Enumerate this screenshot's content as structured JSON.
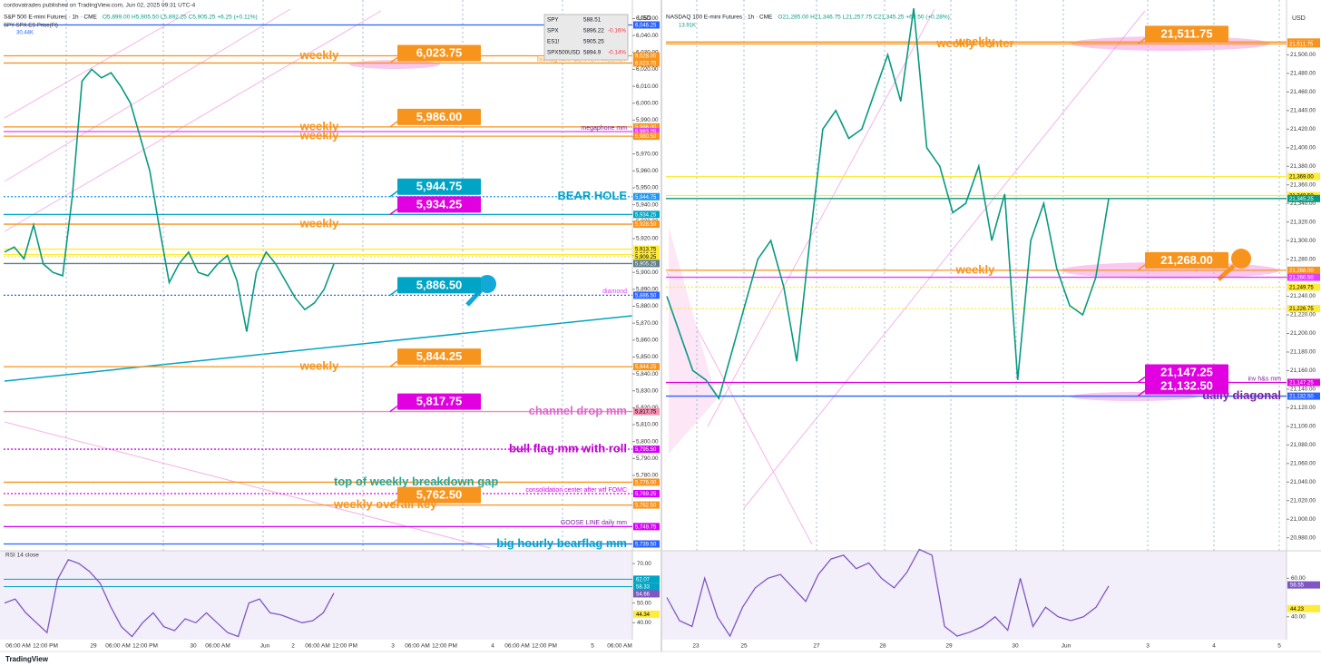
{
  "footer": "TradingView",
  "left": {
    "currency": "USD",
    "header": {
      "by": "cordovatrades published on TradingView.com, Jun 02, 2025 09:31 UTC-4",
      "symbol": "S&P 500 E-mini Futures · 1h · CME",
      "ohlc": "O5,899.00 H5,905.50 L5,892.25 C5,905.25 +6.25 (+0.11%)",
      "studies": "SPY SPX ES Price(Ft)",
      "volume": "30.44K"
    },
    "watchlist": [
      {
        "symbol": "SPY",
        "price": "588.51"
      },
      {
        "symbol": "SPX",
        "price": "5896.22",
        "change": "-0.16%"
      },
      {
        "symbol": "ES1!",
        "price": "5905.25"
      },
      {
        "symbol": "SPX500USD",
        "price": "5894.9",
        "change": "-0.14%"
      }
    ],
    "ylim": [
      5736,
      6061
    ],
    "yticks": [
      {
        "value": 6050,
        "label": "6,050.00"
      },
      {
        "value": 6040,
        "label": "6,040.00"
      },
      {
        "value": 6030,
        "label": "6,030.00"
      },
      {
        "value": 6020,
        "label": "6,020.00"
      },
      {
        "value": 6010,
        "label": "6,010.00"
      },
      {
        "value": 6000,
        "label": "6,000.00"
      },
      {
        "value": 5990,
        "label": "5,990.00"
      },
      {
        "value": 5980,
        "label": "5,980.00"
      },
      {
        "value": 5970,
        "label": "5,970.00"
      },
      {
        "value": 5960,
        "label": "5,960.00"
      },
      {
        "value": 5950,
        "label": "5,950.00"
      },
      {
        "value": 5940,
        "label": "5,940.00"
      },
      {
        "value": 5930,
        "label": "5,930.00"
      },
      {
        "value": 5920,
        "label": "5,920.00"
      },
      {
        "value": 5910,
        "label": "5,910.00"
      },
      {
        "value": 5900,
        "label": "5,900.00"
      },
      {
        "value": 5890,
        "label": "5,890.00"
      },
      {
        "value": 5880,
        "label": "5,880.00"
      },
      {
        "value": 5870,
        "label": "5,870.00"
      },
      {
        "value": 5860,
        "label": "5,860.00"
      },
      {
        "value": 5850,
        "label": "5,850.00"
      },
      {
        "value": 5840,
        "label": "5,840.00"
      },
      {
        "value": 5830,
        "label": "5,830.00"
      },
      {
        "value": 5820,
        "label": "5,820.00"
      },
      {
        "value": 5810,
        "label": "5,810.00"
      },
      {
        "value": 5800,
        "label": "5,800.00"
      },
      {
        "value": 5790,
        "label": "5,790.00"
      },
      {
        "value": 5780,
        "label": "5,780.00"
      }
    ],
    "levels": [
      {
        "value": 6046.25,
        "label": "6,046.25",
        "color": "#2962ff",
        "dash": false
      },
      {
        "value": 6028.0,
        "label": "6,028.00",
        "color": "#f7941d",
        "dash": false,
        "note": "weekly",
        "note_color": "#f7941d"
      },
      {
        "value": 6023.75,
        "label": "6,023.75",
        "color": "#f7941d",
        "dash": false,
        "note": "bullflag mm/ CENTER WEEKLY",
        "note_color": "#f7941d"
      },
      {
        "value": 5986.0,
        "label": "5,986.00",
        "color": "#f7941d",
        "dash": false,
        "note": "weekly",
        "note_color": "#f7941d"
      },
      {
        "value": 5983.25,
        "label": "5,983.25",
        "color": "#e040fb",
        "dash": false,
        "note": "megaphone mm",
        "note_color": "#7b1fa2"
      },
      {
        "value": 5980.5,
        "label": "5,980.50",
        "color": "#f7941d",
        "dash": false,
        "note": "weekly",
        "note_color": "#f7941d"
      },
      {
        "value": 5944.75,
        "label": "5,944.75",
        "color": "#2196f3",
        "dash": true,
        "note": "BEAR HOLE",
        "note_color": "#00a4c4"
      },
      {
        "value": 5934.25,
        "label": "5,934.25",
        "color": "#00a4c4",
        "dash": false
      },
      {
        "value": 5928.5,
        "label": "5,928.50",
        "color": "#f7941d",
        "dash": false,
        "note": "weekly",
        "note_color": "#f7941d"
      },
      {
        "value": 5913.75,
        "label": "5,913.75",
        "color": "#ffeb3b",
        "dash": false
      },
      {
        "value": 5910.5,
        "label": "5,910.50",
        "color": "#ffeb3b",
        "dash": false
      },
      {
        "value": 5909.25,
        "label": "5,909.25",
        "color": "#ffeb3b",
        "dash": true
      },
      {
        "value": 5905.25,
        "label": "5,905.25",
        "color": "#607d8b",
        "dash": false
      },
      {
        "value": 5886.5,
        "label": "5,886.50",
        "color": "#2962ff",
        "dash": true,
        "note": "diamond",
        "note_color": "#e040fb"
      },
      {
        "value": 5844.25,
        "label": "5,844.25",
        "color": "#f7941d",
        "dash": false,
        "note": "weekly",
        "note_color": "#f7941d"
      },
      {
        "value": 5817.75,
        "label": "5,817.75",
        "color": "#f48fb1",
        "dash": false,
        "note": "channel drop mm",
        "note_color": "#e066d0"
      },
      {
        "value": 5795.5,
        "label": "5,795.50",
        "color": "#d500f9",
        "dash": true,
        "note": "bull flag mm with roll",
        "note_color": "#c000d0"
      },
      {
        "value": 5776.0,
        "label": "5,776.00",
        "color": "#f7941d",
        "dash": false,
        "note": "top of weekly breakdown gap",
        "note_color": "#26a69a"
      },
      {
        "value": 5769.25,
        "label": "5,769.25",
        "color": "#d500f9",
        "dash": true,
        "note": "consolidation center after wtf FOMC",
        "note_color": "#d500f9"
      },
      {
        "value": 5762.5,
        "label": "5,762.50",
        "color": "#f7941d",
        "dash": false,
        "note": "weekly overall key",
        "note_color": "#f7941d"
      },
      {
        "value": 5749.75,
        "label": "5,749.75",
        "color": "#d500f9",
        "dash": false,
        "note": "GOOSE LINE daily mm",
        "note_color": "#7b1fa2"
      },
      {
        "value": 5739.5,
        "label": "5,739.50",
        "color": "#2962ff",
        "dash": false,
        "note": "big hourly bearflag mm",
        "note_color": "#00a4c4"
      }
    ],
    "callouts": [
      {
        "value": 6023.75,
        "label": "6,023.75",
        "color": "#f7941d"
      },
      {
        "value": 5986.0,
        "label": "5,986.00",
        "color": "#f7941d"
      },
      {
        "value": 5944.75,
        "label": "5,944.75",
        "color": "#00a4c4"
      },
      {
        "value": 5934.25,
        "label": "5,934.25",
        "color": "#e000e0"
      },
      {
        "value": 5886.5,
        "label": "5,886.50",
        "color": "#00a4c4"
      },
      {
        "value": 5844.25,
        "label": "5,844.25",
        "color": "#f7941d"
      },
      {
        "value": 5817.75,
        "label": "5,817.75",
        "color": "#e000e0"
      },
      {
        "value": 5762.5,
        "label": "5,762.50",
        "color": "#f7941d"
      }
    ],
    "close": [
      5912,
      5915,
      5908,
      5928,
      5905,
      5900,
      5898,
      5945,
      6013,
      6020,
      6015,
      6018,
      6010,
      6000,
      5980,
      5960,
      5926,
      5894,
      5905,
      5912,
      5900,
      5898,
      5905,
      5910,
      5895,
      5865,
      5900,
      5912,
      5905,
      5895,
      5885,
      5878,
      5882,
      5890,
      5905
    ],
    "times": [
      "06:00 AM",
      "12:00 PM",
      "29",
      "06:00 AM",
      "12:00 PM",
      "30",
      "06:00 AM",
      "Jun",
      "2",
      "06:00 AM",
      "12:00 PM",
      "3",
      "06:00 AM",
      "12:00 PM",
      "4",
      "06:00 AM",
      "12:00 PM",
      "5",
      "06:00 AM"
    ],
    "rsi": {
      "label": "RSI 14 close",
      "ylim": [
        31.4,
        76.5
      ],
      "yticks": [
        {
          "value": 70,
          "label": "70.00"
        },
        {
          "value": 50,
          "label": "50.00"
        },
        {
          "value": 40,
          "label": "40.00"
        }
      ],
      "tags": [
        {
          "value": 62.07,
          "label": "62.07",
          "color": "#00a4c4"
        },
        {
          "value": 58.33,
          "label": "58.33",
          "color": "#00a4c4"
        },
        {
          "value": 54.66,
          "label": "54.66",
          "color": "#7e57c2"
        },
        {
          "value": 44.34,
          "label": "44.34",
          "color": "#ffeb3b"
        }
      ],
      "values": [
        50,
        52,
        45,
        40,
        35,
        62,
        72,
        70,
        66,
        60,
        48,
        38,
        33,
        40,
        45,
        38,
        36,
        42,
        40,
        45,
        40,
        35,
        33,
        50,
        52,
        45,
        44,
        42,
        40,
        41,
        45,
        55
      ]
    }
  },
  "right": {
    "currency": "USD",
    "header": {
      "symbol": "NASDAQ 100 E-mini Futures · 1h · CME",
      "ohlc": "O21,285.00 H21,346.75 L21,257.75 C21,345.25 +60.50 (+0.28%)",
      "volume": "13.91K"
    },
    "ylim": [
      20967,
      21559
    ],
    "yticks": [
      {
        "value": 21500,
        "label": "21,500.00"
      },
      {
        "value": 21480,
        "label": "21,480.00"
      },
      {
        "value": 21460,
        "label": "21,460.00"
      },
      {
        "value": 21440,
        "label": "21,440.00"
      },
      {
        "value": 21420,
        "label": "21,420.00"
      },
      {
        "value": 21400,
        "label": "21,400.00"
      },
      {
        "value": 21380,
        "label": "21,380.00"
      },
      {
        "value": 21360,
        "label": "21,360.00"
      },
      {
        "value": 21340,
        "label": "21,340.00"
      },
      {
        "value": 21320,
        "label": "21,320.00"
      },
      {
        "value": 21300,
        "label": "21,300.00"
      },
      {
        "value": 21280,
        "label": "21,280.00"
      },
      {
        "value": 21260,
        "label": "21,260.00"
      },
      {
        "value": 21240,
        "label": "21,240.00"
      },
      {
        "value": 21220,
        "label": "21,220.00"
      },
      {
        "value": 21200,
        "label": "21,200.00"
      },
      {
        "value": 21180,
        "label": "21,180.00"
      },
      {
        "value": 21160,
        "label": "21,160.00"
      },
      {
        "value": 21140,
        "label": "21,140.00"
      },
      {
        "value": 21120,
        "label": "21,120.00"
      },
      {
        "value": 21100,
        "label": "21,100.00"
      },
      {
        "value": 21080,
        "label": "21,080.00"
      },
      {
        "value": 21060,
        "label": "21,060.00"
      },
      {
        "value": 21040,
        "label": "21,040.00"
      },
      {
        "value": 21020,
        "label": "21,020.00"
      },
      {
        "value": 21000,
        "label": "21,000.00"
      },
      {
        "value": 20980,
        "label": "20,980.00"
      }
    ],
    "levels": [
      {
        "value": 21513.75,
        "label": "21,513.75",
        "color": "#f7941d",
        "dash": false,
        "note": "weekly",
        "note_color": "#f7941d"
      },
      {
        "value": 21511.75,
        "label": "21,511.75",
        "color": "#f7941d",
        "dash": false,
        "note": "weekly center",
        "note_color": "#f7941d"
      },
      {
        "value": 21369.0,
        "label": "21,369.00",
        "color": "#ffeb3b",
        "dash": false
      },
      {
        "value": 21348.5,
        "label": "21,348.50",
        "color": "#ffeb3b",
        "dash": false
      },
      {
        "value": 21345.25,
        "label": "21,345.25",
        "color": "#089981",
        "dash": false
      },
      {
        "value": 21268.0,
        "label": "21,268.00",
        "color": "#f7941d",
        "dash": false,
        "note": "weekly",
        "note_color": "#f7941d"
      },
      {
        "value": 21260.5,
        "label": "21,260.50",
        "color": "#e040fb",
        "dash": false
      },
      {
        "value": 21249.75,
        "label": "21,249.75",
        "color": "#ffeb3b",
        "dash": true
      },
      {
        "value": 21226.75,
        "label": "21,226.75",
        "color": "#ffeb3b",
        "dash": true
      },
      {
        "value": 21147.25,
        "label": "21,147.25",
        "color": "#e000e0",
        "dash": false,
        "note": "inv h&s mm",
        "note_color": "#7b1fa2"
      },
      {
        "value": 21132.5,
        "label": "21,132.50",
        "color": "#2962ff",
        "dash": false,
        "note": "daily diagonal",
        "note_color": "#7b1fa2"
      }
    ],
    "callouts": [
      {
        "value": 21511.75,
        "label": "21,511.75",
        "color": "#f7941d"
      },
      {
        "value": 21268.0,
        "label": "21,268.00",
        "color": "#f7941d"
      },
      {
        "value": 21147.25,
        "label": "21,147.25",
        "color": "#e000e0"
      },
      {
        "value": 21132.5,
        "label": "21,132.50",
        "color": "#e000e0"
      }
    ],
    "close": [
      21240,
      21200,
      21160,
      21150,
      21130,
      21180,
      21230,
      21280,
      21300,
      21250,
      21170,
      21300,
      21420,
      21440,
      21410,
      21420,
      21460,
      21500,
      21450,
      21550,
      21400,
      21380,
      21330,
      21340,
      21380,
      21300,
      21350,
      21150,
      21300,
      21340,
      21270,
      21230,
      21220,
      21260,
      21345
    ],
    "times": [
      "23",
      "25",
      "27",
      "28",
      "29",
      "30",
      "Jun",
      "3",
      "4",
      "5"
    ],
    "rsi": {
      "ylim": [
        28.1,
        74.3
      ],
      "yticks": [
        {
          "value": 60,
          "label": "60.00"
        },
        {
          "value": 40,
          "label": "40.00"
        }
      ],
      "tags": [
        {
          "value": 56.55,
          "label": "56.55",
          "color": "#7e57c2"
        },
        {
          "value": 44.23,
          "label": "44.23",
          "color": "#ffeb3b"
        }
      ],
      "values": [
        50,
        38,
        35,
        60,
        40,
        30,
        45,
        55,
        60,
        62,
        55,
        48,
        62,
        70,
        72,
        65,
        68,
        60,
        55,
        63,
        75,
        72,
        35,
        30,
        32,
        35,
        40,
        33,
        60,
        35,
        45,
        40,
        38,
        40,
        45,
        56
      ]
    }
  }
}
